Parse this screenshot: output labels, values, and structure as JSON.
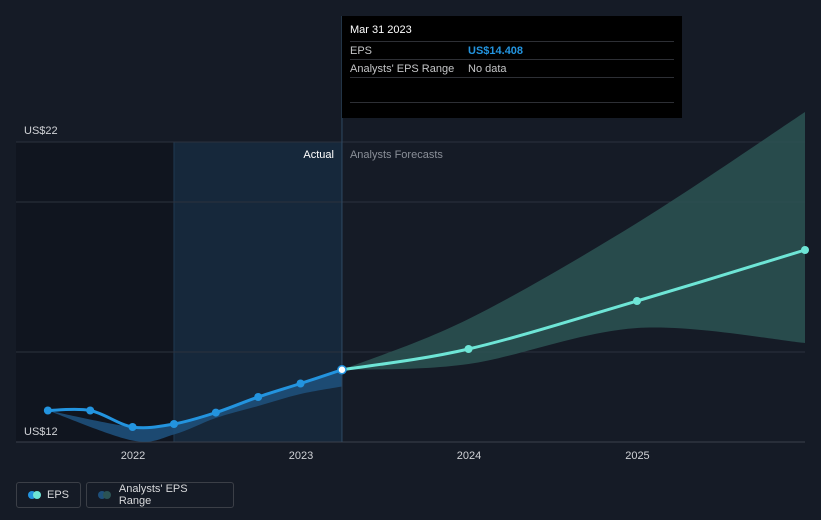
{
  "chart_data": {
    "type": "line",
    "y_axis": {
      "min": 12,
      "max": 22,
      "tick_labels": [
        "US$22",
        "US$12"
      ]
    },
    "x_axis": {
      "tick_labels": [
        "2022",
        "2023",
        "2024",
        "2025"
      ]
    },
    "section_labels": {
      "actual": "Actual",
      "forecast": "Analysts Forecasts"
    },
    "eps_actual": [
      {
        "date": "2021-06-30",
        "value": 13.05
      },
      {
        "date": "2021-09-30",
        "value": 13.05
      },
      {
        "date": "2021-12-31",
        "value": 12.5
      },
      {
        "date": "2022-03-31",
        "value": 12.6
      },
      {
        "date": "2022-06-30",
        "value": 12.98
      },
      {
        "date": "2022-09-30",
        "value": 13.5
      },
      {
        "date": "2022-12-31",
        "value": 13.95
      },
      {
        "date": "2023-03-31",
        "value": 14.408
      }
    ],
    "eps_forecast": [
      {
        "date": "2023-03-31",
        "value": 14.408
      },
      {
        "date": "2023-12-31",
        "value": 15.1
      },
      {
        "date": "2024-12-31",
        "value": 16.7
      },
      {
        "date": "2025-12-31",
        "value": 18.4
      }
    ],
    "range_actual": [
      {
        "date": "2021-06-30",
        "low": 13.05,
        "high": 13.05
      },
      {
        "date": "2021-12-31",
        "low": 12.05,
        "high": 12.5
      },
      {
        "date": "2022-03-31",
        "low": 12.25,
        "high": 12.6
      },
      {
        "date": "2022-06-30",
        "low": 12.8,
        "high": 12.98
      },
      {
        "date": "2022-09-30",
        "low": 13.2,
        "high": 13.5
      },
      {
        "date": "2022-12-31",
        "low": 13.6,
        "high": 13.95
      },
      {
        "date": "2023-03-31",
        "low": 13.85,
        "high": 14.408
      }
    ],
    "range_forecast": [
      {
        "date": "2023-03-31",
        "low": 14.408,
        "high": 14.408
      },
      {
        "date": "2023-12-31",
        "low": 14.6,
        "high": 16.1
      },
      {
        "date": "2024-12-31",
        "low": 15.8,
        "high": 19.3
      },
      {
        "date": "2025-12-31",
        "low": 15.3,
        "high": 23.0
      }
    ],
    "legend": [
      "EPS",
      "Analysts' EPS Range"
    ],
    "grid": true
  },
  "tooltip": {
    "date": "Mar 31 2023",
    "rows": [
      {
        "label": "EPS",
        "value": "US$14.408"
      },
      {
        "label": "Analysts' EPS Range",
        "value": "No data"
      }
    ]
  },
  "colors": {
    "background": "#151b26",
    "eps_actual": "#2394df",
    "eps_forecast": "#6ee5d6",
    "range_forecast": "#2b5354",
    "range_actual": "#1e4f7a",
    "actual_band": "#16283b"
  }
}
